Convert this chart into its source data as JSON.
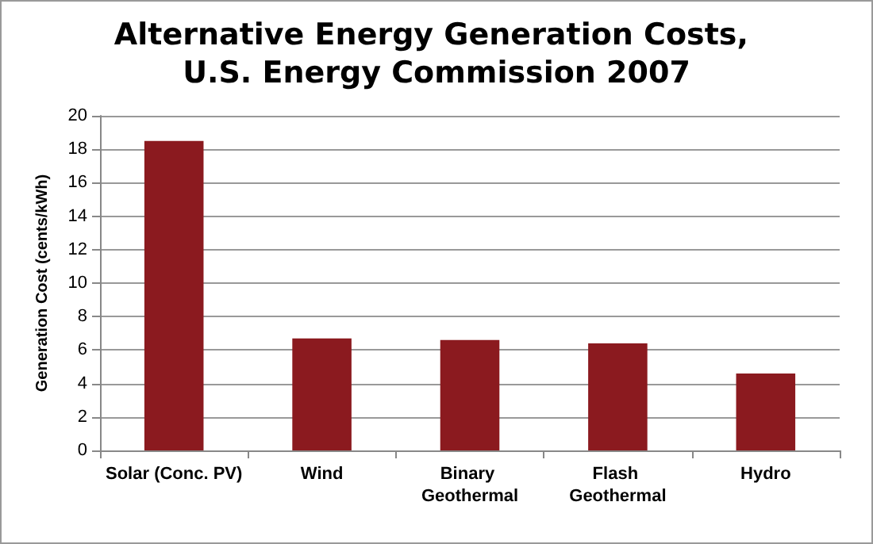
{
  "chart_data": {
    "type": "bar",
    "title": "Alternative Energy Generation Costs, U.S. Energy Commission 2007",
    "ylabel": "Generation Cost (cents/kWh)",
    "categories": [
      "Solar (Conc. PV)",
      "Wind",
      "Binary Geothermal",
      "Flash Geothermal",
      "Hydro"
    ],
    "values": [
      18.5,
      6.7,
      6.6,
      6.4,
      4.6
    ],
    "color": "#8b1a1f",
    "ylim": [
      0,
      20
    ],
    "yticks": [
      0,
      2,
      4,
      6,
      8,
      10,
      12,
      14,
      16,
      18,
      20
    ],
    "grid": "y"
  }
}
